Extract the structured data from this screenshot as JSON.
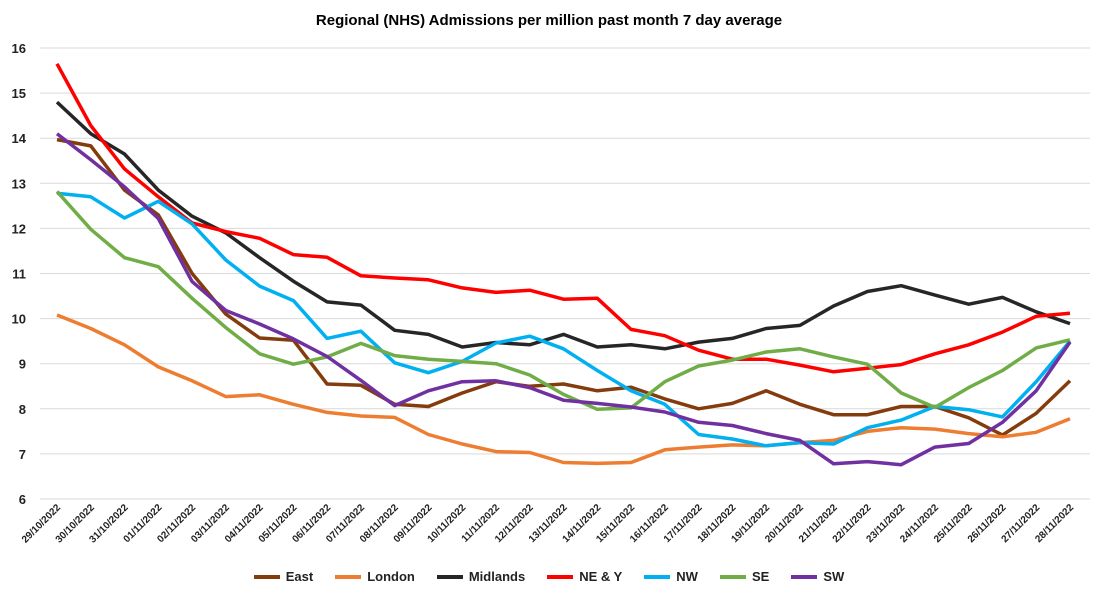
{
  "chart_data": {
    "type": "line",
    "title": "Regional (NHS) Admissions per million past month 7 day average",
    "xlabel": "",
    "ylabel": "",
    "ylim": [
      6,
      16
    ],
    "yticks": [
      6,
      7,
      8,
      9,
      10,
      11,
      12,
      13,
      14,
      15,
      16
    ],
    "grid": true,
    "legend_placement": "bottom",
    "categories": [
      "29/10/2022",
      "30/10/2022",
      "31/10/2022",
      "01/11/2022",
      "02/11/2022",
      "03/11/2022",
      "04/11/2022",
      "05/11/2022",
      "06/11/2022",
      "07/11/2022",
      "08/11/2022",
      "09/11/2022",
      "10/11/2022",
      "11/11/2022",
      "12/11/2022",
      "13/11/2022",
      "14/11/2022",
      "15/11/2022",
      "16/11/2022",
      "17/11/2022",
      "18/11/2022",
      "19/11/2022",
      "20/11/2022",
      "21/11/2022",
      "22/11/2022",
      "23/11/2022",
      "24/11/2022",
      "25/11/2022",
      "26/11/2022",
      "27/11/2022",
      "28/11/2022"
    ],
    "series": [
      {
        "name": "East",
        "color": "#843C0C",
        "values": [
          13.97,
          13.83,
          12.85,
          12.3,
          11.0,
          10.1,
          9.57,
          9.52,
          8.55,
          8.52,
          8.1,
          8.05,
          8.35,
          8.6,
          8.5,
          8.55,
          8.4,
          8.48,
          8.22,
          8.0,
          8.12,
          8.4,
          8.1,
          7.87,
          7.87,
          8.05,
          8.05,
          7.8,
          7.42,
          7.9,
          8.62
        ]
      },
      {
        "name": "London",
        "color": "#ED7D31",
        "values": [
          10.08,
          9.78,
          9.42,
          8.93,
          8.62,
          8.27,
          8.31,
          8.1,
          7.92,
          7.84,
          7.81,
          7.43,
          7.22,
          7.05,
          7.03,
          6.81,
          6.79,
          6.81,
          7.09,
          7.15,
          7.2,
          7.18,
          7.25,
          7.3,
          7.5,
          7.58,
          7.55,
          7.45,
          7.38,
          7.48,
          7.78
        ]
      },
      {
        "name": "Midlands",
        "color": "#262626",
        "values": [
          14.8,
          14.1,
          13.65,
          12.85,
          12.27,
          11.9,
          11.35,
          10.83,
          10.37,
          10.3,
          9.74,
          9.65,
          9.37,
          9.47,
          9.42,
          9.65,
          9.37,
          9.42,
          9.33,
          9.48,
          9.56,
          9.78,
          9.85,
          10.28,
          10.6,
          10.73,
          10.52,
          10.32,
          10.47,
          10.15,
          9.89
        ]
      },
      {
        "name": "NE & Y",
        "color": "#FF0000",
        "values": [
          15.65,
          14.28,
          13.32,
          12.7,
          12.12,
          11.93,
          11.78,
          11.42,
          11.36,
          10.95,
          10.9,
          10.86,
          10.68,
          10.58,
          10.63,
          10.43,
          10.45,
          9.76,
          9.62,
          9.3,
          9.1,
          9.1,
          8.97,
          8.82,
          8.9,
          8.98,
          9.22,
          9.42,
          9.7,
          10.05,
          10.12
        ]
      },
      {
        "name": "NW",
        "color": "#00B0F0",
        "values": [
          12.78,
          12.7,
          12.23,
          12.6,
          12.1,
          11.3,
          10.72,
          10.4,
          9.56,
          9.72,
          9.02,
          8.8,
          9.05,
          9.46,
          9.61,
          9.33,
          8.85,
          8.4,
          8.1,
          7.43,
          7.33,
          7.18,
          7.25,
          7.22,
          7.58,
          7.75,
          8.05,
          7.98,
          7.82,
          8.6,
          9.5
        ]
      },
      {
        "name": "SE",
        "color": "#70AD47",
        "values": [
          12.82,
          11.98,
          11.35,
          11.15,
          10.45,
          9.8,
          9.22,
          8.99,
          9.15,
          9.45,
          9.18,
          9.1,
          9.05,
          9.0,
          8.75,
          8.32,
          7.99,
          8.02,
          8.6,
          8.95,
          9.08,
          9.26,
          9.33,
          9.15,
          8.99,
          8.35,
          8.03,
          8.47,
          8.85,
          9.35,
          9.53
        ]
      },
      {
        "name": "SW",
        "color": "#7030A0",
        "values": [
          14.1,
          13.52,
          12.92,
          12.22,
          10.82,
          10.18,
          9.88,
          9.55,
          9.16,
          8.63,
          8.07,
          8.4,
          8.6,
          8.62,
          8.47,
          8.19,
          8.12,
          8.04,
          7.93,
          7.7,
          7.63,
          7.45,
          7.3,
          6.78,
          6.83,
          6.76,
          7.15,
          7.23,
          7.7,
          8.4,
          9.48
        ]
      }
    ]
  }
}
